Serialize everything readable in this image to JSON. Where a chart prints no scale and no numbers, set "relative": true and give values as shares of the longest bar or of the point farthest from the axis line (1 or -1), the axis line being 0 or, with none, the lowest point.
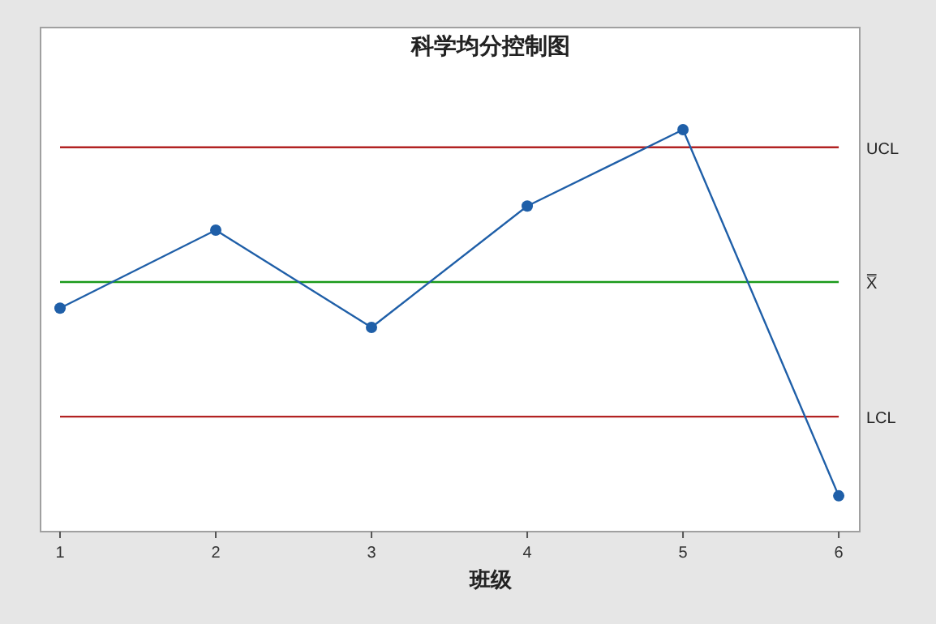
{
  "chart_data": {
    "type": "line",
    "title": "科学均分控制图",
    "xlabel": "班级",
    "x": [
      1,
      2,
      3,
      4,
      5,
      6
    ],
    "xlim": [
      0.875,
      6.135
    ],
    "xticks": [
      1,
      2,
      3,
      4,
      5,
      6
    ],
    "relative": true,
    "marker": "circle",
    "series": [
      {
        "color": "#1f5fa8",
        "values": [
          0.556,
          0.75,
          0.508,
          0.81,
          1,
          0.089
        ]
      }
    ],
    "ref_lines": [
      {
        "axis": "y",
        "value": 0.956,
        "label": "UCL",
        "color": "#b22222"
      },
      {
        "axis": "y",
        "value": 0.621,
        "label": "X̿",
        "color": "#1a9a1a"
      },
      {
        "axis": "y",
        "value": 0.286,
        "label": "LCL",
        "color": "#b22222"
      }
    ]
  }
}
